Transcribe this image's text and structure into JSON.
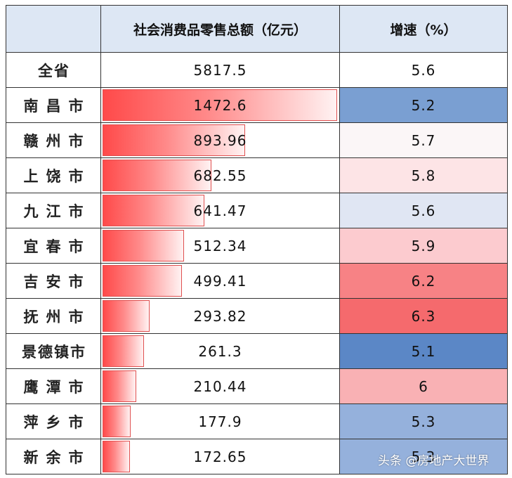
{
  "table": {
    "headers": {
      "name": "",
      "sales": "社会消费品零售总额（亿元）",
      "growth": "增速（%）"
    },
    "rows": [
      {
        "name": "全省",
        "sales": "5817.5",
        "growth": "5.6",
        "growth_color": "#ffffff",
        "bar": 0
      },
      {
        "name": "南昌市",
        "sales": "1472.6",
        "growth": "5.2",
        "growth_color": "#7a9fd2",
        "bar": 1472.6
      },
      {
        "name": "赣州市",
        "sales": "893.96",
        "growth": "5.7",
        "growth_color": "#fbf6f7",
        "bar": 893.96
      },
      {
        "name": "上饶市",
        "sales": "682.55",
        "growth": "5.8",
        "growth_color": "#fde4e6",
        "bar": 682.55
      },
      {
        "name": "九江市",
        "sales": "641.47",
        "growth": "5.6",
        "growth_color": "#e0e6f3",
        "bar": 641.47
      },
      {
        "name": "宜春市",
        "sales": "512.34",
        "growth": "5.9",
        "growth_color": "#fccbcf",
        "bar": 512.34
      },
      {
        "name": "吉安市",
        "sales": "499.41",
        "growth": "6.2",
        "growth_color": "#f78285",
        "bar": 499.41
      },
      {
        "name": "抚州市",
        "sales": "293.82",
        "growth": "6.3",
        "growth_color": "#f56a6d",
        "bar": 293.82
      },
      {
        "name": "景德镇市",
        "sales": "261.3",
        "growth": "5.1",
        "growth_color": "#5b87c6",
        "bar": 261.3
      },
      {
        "name": "鹰潭市",
        "sales": "210.44",
        "growth": "6",
        "growth_color": "#f9b1b4",
        "bar": 210.44
      },
      {
        "name": "萍乡市",
        "sales": "177.9",
        "growth": "5.3",
        "growth_color": "#95b1dc",
        "bar": 177.9
      },
      {
        "name": "新余市",
        "sales": "172.65",
        "growth": "5.3",
        "growth_color": "#95b1dc",
        "bar": 172.65
      }
    ],
    "bar_max": 1472.6
  },
  "watermark": "头条 @房地产大世界"
}
